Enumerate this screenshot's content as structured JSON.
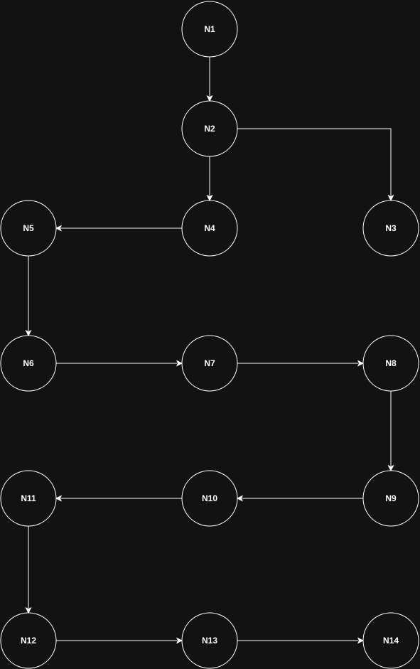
{
  "diagram": {
    "background_color": "#121212",
    "stroke_color": "#ffffff",
    "text_color": "#ffffff",
    "nodes": [
      {
        "id": "N1",
        "label": "N1"
      },
      {
        "id": "N2",
        "label": "N2"
      },
      {
        "id": "N3",
        "label": "N3"
      },
      {
        "id": "N4",
        "label": "N4"
      },
      {
        "id": "N5",
        "label": "N5"
      },
      {
        "id": "N6",
        "label": "N6"
      },
      {
        "id": "N7",
        "label": "N7"
      },
      {
        "id": "N8",
        "label": "N8"
      },
      {
        "id": "N9",
        "label": "N9"
      },
      {
        "id": "N10",
        "label": "N10"
      },
      {
        "id": "N11",
        "label": "N11"
      },
      {
        "id": "N12",
        "label": "N12"
      },
      {
        "id": "N13",
        "label": "N13"
      },
      {
        "id": "N14",
        "label": "N14"
      }
    ],
    "edges": [
      {
        "from": "N1",
        "to": "N2"
      },
      {
        "from": "N2",
        "to": "N3"
      },
      {
        "from": "N2",
        "to": "N4"
      },
      {
        "from": "N4",
        "to": "N5"
      },
      {
        "from": "N5",
        "to": "N6"
      },
      {
        "from": "N6",
        "to": "N7"
      },
      {
        "from": "N7",
        "to": "N8"
      },
      {
        "from": "N8",
        "to": "N9"
      },
      {
        "from": "N9",
        "to": "N10"
      },
      {
        "from": "N10",
        "to": "N11"
      },
      {
        "from": "N11",
        "to": "N12"
      },
      {
        "from": "N12",
        "to": "N13"
      },
      {
        "from": "N13",
        "to": "N14"
      }
    ]
  }
}
